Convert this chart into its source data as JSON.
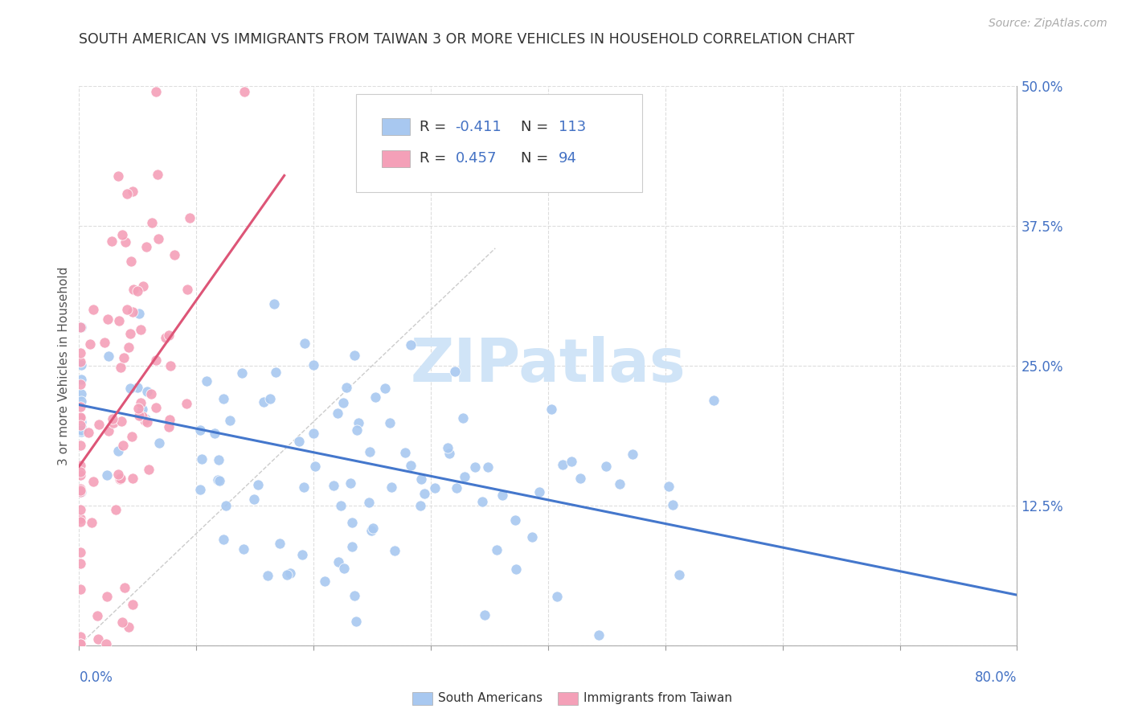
{
  "title": "SOUTH AMERICAN VS IMMIGRANTS FROM TAIWAN 3 OR MORE VEHICLES IN HOUSEHOLD CORRELATION CHART",
  "source": "Source: ZipAtlas.com",
  "ylabel": "3 or more Vehicles in Household",
  "xlim": [
    0.0,
    0.8
  ],
  "ylim": [
    0.0,
    0.5
  ],
  "xticks": [
    0.0,
    0.1,
    0.2,
    0.3,
    0.4,
    0.5,
    0.6,
    0.7,
    0.8
  ],
  "xticklabels_left": "0.0%",
  "xticklabels_right": "80.0%",
  "yticks": [
    0.0,
    0.125,
    0.25,
    0.375,
    0.5
  ],
  "yticklabels": [
    "",
    "12.5%",
    "25.0%",
    "37.5%",
    "50.0%"
  ],
  "blue_R": -0.411,
  "blue_N": 113,
  "pink_R": 0.457,
  "pink_N": 94,
  "legend_labels": [
    "South Americans",
    "Immigrants from Taiwan"
  ],
  "blue_color": "#A8C8F0",
  "pink_color": "#F4A0B8",
  "blue_line_color": "#4477CC",
  "pink_line_color": "#DD5577",
  "dashed_line_color": "#CCCCCC",
  "grid_color": "#DDDDDD",
  "title_color": "#333333",
  "axis_color": "#4472C4",
  "watermark": "ZIPatlas",
  "watermark_color": "#D0E4F7",
  "background_color": "#FFFFFF",
  "blue_line_x": [
    0.0,
    0.8
  ],
  "blue_line_y": [
    0.215,
    0.045
  ],
  "pink_line_x": [
    0.0,
    0.175
  ],
  "pink_line_y": [
    0.16,
    0.42
  ],
  "diag_line_x": [
    0.0,
    0.355
  ],
  "diag_line_y": [
    0.0,
    0.355
  ]
}
